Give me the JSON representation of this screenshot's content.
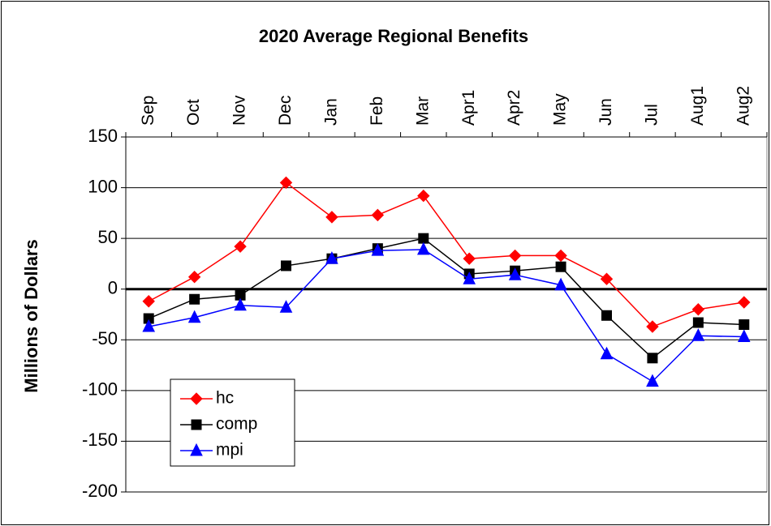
{
  "chart_data": {
    "type": "line",
    "title": "2020 Average Regional Benefits",
    "y_label": "Millions of Dollars",
    "categories": [
      "Sep",
      "Oct",
      "Nov",
      "Dec",
      "Jan",
      "Feb",
      "Mar",
      "Apr1",
      "Apr2",
      "May",
      "Jun",
      "Jul",
      "Aug1",
      "Aug2"
    ],
    "series": [
      {
        "name": "hc",
        "color": "#ff0000",
        "marker_color": "#ff0000",
        "marker": "diamond",
        "values": [
          -12,
          12,
          42,
          105,
          71,
          73,
          92,
          30,
          33,
          33,
          10,
          -37,
          -20,
          -13
        ]
      },
      {
        "name": "comp",
        "color": "#000000",
        "marker_color": "#000000",
        "marker": "square",
        "values": [
          -29,
          -10,
          -6,
          23,
          30,
          40,
          50,
          15,
          18,
          22,
          -26,
          -68,
          -33,
          -35
        ]
      },
      {
        "name": "mpi",
        "color": "#0000ff",
        "marker_color": "#0000ff",
        "marker": "triangle",
        "values": [
          -37,
          -28,
          -16,
          -18,
          30,
          38,
          39,
          10,
          14,
          4,
          -64,
          -91,
          -46,
          -47
        ]
      }
    ],
    "ylim": [
      -200,
      150
    ],
    "yticks": [
      -200,
      -150,
      -100,
      -50,
      0,
      50,
      100,
      150
    ],
    "grid": true,
    "legend": "lower left"
  }
}
